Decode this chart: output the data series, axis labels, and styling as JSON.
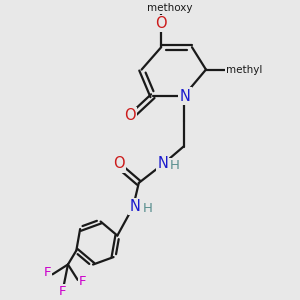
{
  "bg_color": "#e8e8e8",
  "bond_color": "#1a1a1a",
  "N_color": "#1a1acc",
  "O_color": "#cc1a1a",
  "F_color": "#cc00cc",
  "H_color": "#5a9090",
  "line_width": 1.6,
  "font_size": 9.5,
  "figsize": [
    3.0,
    3.0
  ],
  "dpi": 100,
  "xlim": [
    0,
    10
  ],
  "ylim": [
    0,
    10
  ]
}
